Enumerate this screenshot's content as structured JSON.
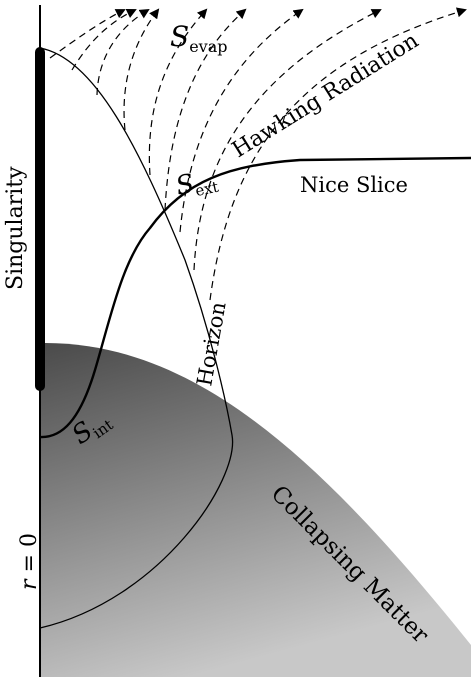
{
  "labels": {
    "singularity": "Singularity",
    "r_axis_var": "r",
    "r_axis_eq": " = 0",
    "s_evap_main": "S",
    "s_evap_sub": "evap",
    "s_ext_main": "S",
    "s_ext_sub": "ext",
    "s_int_main": "S",
    "s_int_sub": "int",
    "hawking_radiation": "Hawking Radiation",
    "nice_slice": "Nice Slice",
    "horizon": "Horizon",
    "collapsing_matter": "Collapsing Matter"
  },
  "colors": {
    "ink": "#000000",
    "matter_dark": "#4a4a4a",
    "matter_light": "#c8c8c8",
    "background": "#ffffff"
  }
}
